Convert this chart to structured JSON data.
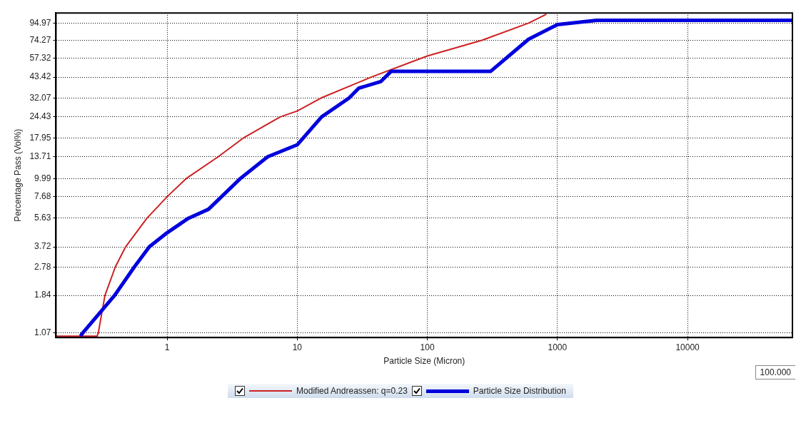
{
  "chart_data": {
    "type": "line",
    "xlabel": "Particle Size (Micron)",
    "ylabel": "Percentage Pass (Vol%)",
    "log": "xy",
    "grid": true,
    "legend": "bottom",
    "marker": "none",
    "line_style": "solid",
    "xlim": [
      0.14,
      64000
    ],
    "xticks": [
      1,
      10,
      100,
      1000,
      10000
    ],
    "ylim": [
      1,
      110
    ],
    "yticks": [
      1.07,
      1.84,
      2.78,
      3.72,
      5.63,
      7.68,
      9.99,
      13.71,
      17.95,
      24.43,
      32.07,
      43.42,
      57.32,
      74.27,
      94.97
    ],
    "annotations": [
      "100.000"
    ],
    "series": [
      {
        "name": "Modified Andreassen:  q=0.23",
        "color": "#cc2020",
        "x": [
          0.14,
          0.29,
          0.296,
          0.333,
          0.4,
          0.48,
          0.7,
          1.0,
          1.4,
          2.47,
          3.84,
          7.4,
          10,
          15.2,
          37,
          100,
          265,
          600,
          822
        ],
        "values": [
          1.02,
          1.02,
          1.07,
          1.84,
          2.78,
          3.72,
          5.63,
          7.68,
          9.99,
          13.71,
          17.95,
          24.43,
          26.6,
          32.07,
          43.42,
          59,
          74.27,
          94.97,
          108
        ]
      },
      {
        "name": "Particle Size Distribution",
        "color": "#0000dd",
        "x": [
          0.216,
          0.225,
          0.395,
          0.56,
          0.73,
          1.0,
          1.46,
          2.08,
          3.65,
          5.93,
          10,
          15.4,
          25,
          29.7,
          43.8,
          52.6,
          306,
          600,
          1000,
          2000,
          64000
        ],
        "values": [
          1.02,
          1.07,
          1.84,
          2.78,
          3.72,
          4.56,
          5.63,
          6.41,
          9.99,
          13.71,
          16.3,
          24.43,
          32.07,
          37,
          40.7,
          47.2,
          47.2,
          75.2,
          93,
          98.8,
          98.8
        ]
      }
    ]
  }
}
